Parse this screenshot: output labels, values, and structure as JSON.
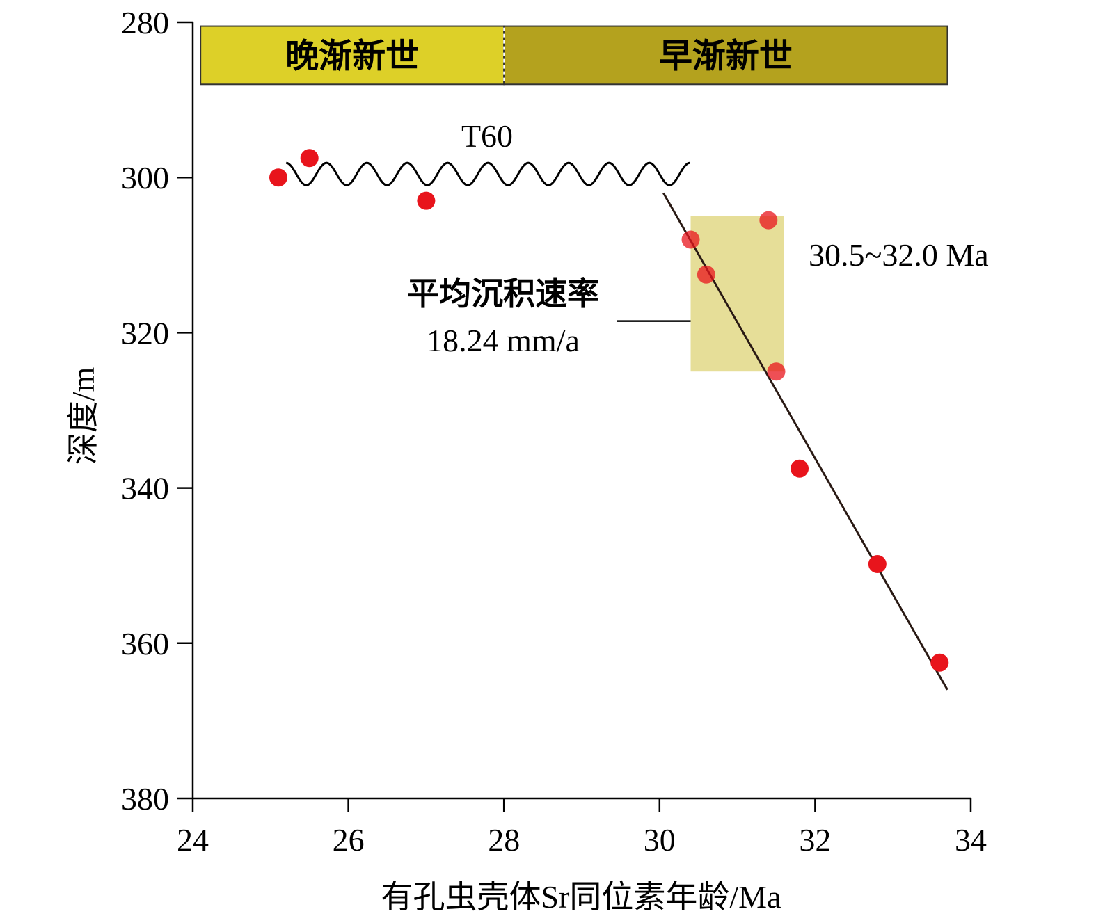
{
  "chart_data": {
    "type": "scatter",
    "title": "",
    "xlabel": "有孔虫壳体Sr同位素年龄/Ma",
    "ylabel": "深度/m",
    "xlim": [
      24,
      34
    ],
    "ylim": [
      280,
      380
    ],
    "y_inverted": true,
    "x_ticks": [
      24,
      26,
      28,
      30,
      32,
      34
    ],
    "y_ticks": [
      280,
      300,
      320,
      340,
      360,
      380
    ],
    "grid": false,
    "point_color": "#e8141c",
    "points": [
      {
        "x": 25.1,
        "y": 300.0
      },
      {
        "x": 25.5,
        "y": 297.5
      },
      {
        "x": 27.0,
        "y": 303.0
      },
      {
        "x": 30.4,
        "y": 308.0
      },
      {
        "x": 30.6,
        "y": 312.5
      },
      {
        "x": 31.4,
        "y": 305.5
      },
      {
        "x": 31.5,
        "y": 325.0
      },
      {
        "x": 31.8,
        "y": 337.5
      },
      {
        "x": 32.8,
        "y": 349.8
      },
      {
        "x": 33.6,
        "y": 362.5
      }
    ],
    "trend_line": {
      "x": [
        30.05,
        33.7
      ],
      "y": [
        302.0,
        366.0
      ],
      "color": "#2a1a14"
    },
    "epochs": [
      {
        "label": "晚渐新世",
        "x_start": 24.1,
        "x_end": 28.0,
        "color": "#ddd028"
      },
      {
        "label": "早渐新世",
        "x_start": 28.0,
        "x_end": 33.7,
        "color": "#b4a21e"
      }
    ],
    "epoch_band_y": [
      280.5,
      288.0
    ],
    "unconformity": {
      "label": "T60",
      "x_start": 25.2,
      "x_end": 30.4,
      "y": 300.0
    },
    "highlight_box": {
      "x_start": 30.4,
      "x_end": 31.6,
      "y_start": 305.0,
      "y_end": 325.0,
      "color": "#e6de98"
    },
    "annotations": {
      "rate_label": "平均沉积速率",
      "rate_value": "18.24 mm/a",
      "age_range": "30.5~32.0 Ma"
    }
  }
}
